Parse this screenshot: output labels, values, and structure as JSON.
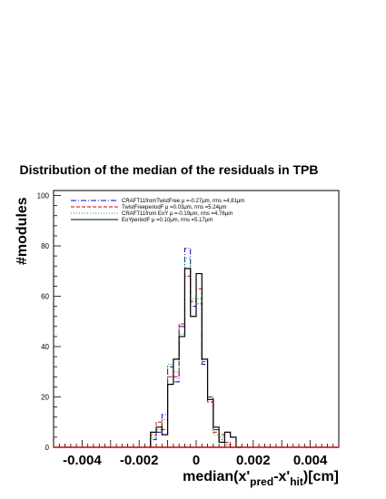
{
  "chart_data": {
    "type": "line",
    "title": "Distribution of the median of the residuals in TPB",
    "xlabel": {
      "base": "median(x'",
      "sub1": "pred",
      "mid": "-x'",
      "sub2": "hit",
      "end": ")[cm]"
    },
    "ylabel": "#modules",
    "xlim": [
      -0.005,
      0.005
    ],
    "ylim": [
      0,
      102
    ],
    "x_ticks": [
      -0.004,
      -0.002,
      0,
      0.002,
      0.004
    ],
    "x_tick_labels": [
      "-0.004",
      "-0.002",
      "0",
      "0.002",
      "0.004"
    ],
    "y_ticks": [
      0,
      20,
      40,
      60,
      80,
      100
    ],
    "y_tick_labels": [
      "0",
      "20",
      "40",
      "60",
      "80",
      "100"
    ],
    "bin_edges": [
      -0.0016,
      -0.0014,
      -0.0012,
      -0.001,
      -0.0008,
      -0.0006,
      -0.0004,
      -0.0002,
      0,
      0.0002,
      0.0004,
      0.0006,
      0.0008,
      0.001,
      0.0012,
      0.0014,
      0.0016
    ],
    "legend_position": "top-left",
    "series": [
      {
        "name": "CRAFT11fromTwistFree μ =-0.27μm, rms =4.81μm",
        "color": "#0000cc",
        "dash": "6,2,1,2",
        "values": [
          3,
          6,
          13,
          32,
          26,
          48,
          79,
          56,
          57,
          33,
          20,
          7,
          3,
          1,
          0,
          0
        ]
      },
      {
        "name": "TwistFreeperiodF μ =0.03μm, rms =5.24μm",
        "color": "#cc0000",
        "dash": "4,2",
        "values": [
          5,
          10,
          7,
          28,
          28,
          49,
          68,
          58,
          63,
          34,
          18,
          6,
          5,
          2,
          0,
          0
        ]
      },
      {
        "name": "CRAFT11from EoY μ =-0.19μm, rms =4.76μm",
        "color": "#00aa00",
        "dash": "1,2",
        "values": [
          4,
          7,
          11,
          33,
          30,
          45,
          75,
          59,
          59,
          35,
          20,
          5,
          4,
          1,
          0,
          0
        ]
      },
      {
        "name": "EoYperiodF μ =0.10μm, rms =5.17μm",
        "color": "#000000",
        "dash": "",
        "values": [
          6,
          8,
          5,
          25,
          35,
          44,
          71,
          52,
          69,
          35,
          19,
          8,
          2,
          6,
          4,
          0
        ]
      }
    ]
  }
}
